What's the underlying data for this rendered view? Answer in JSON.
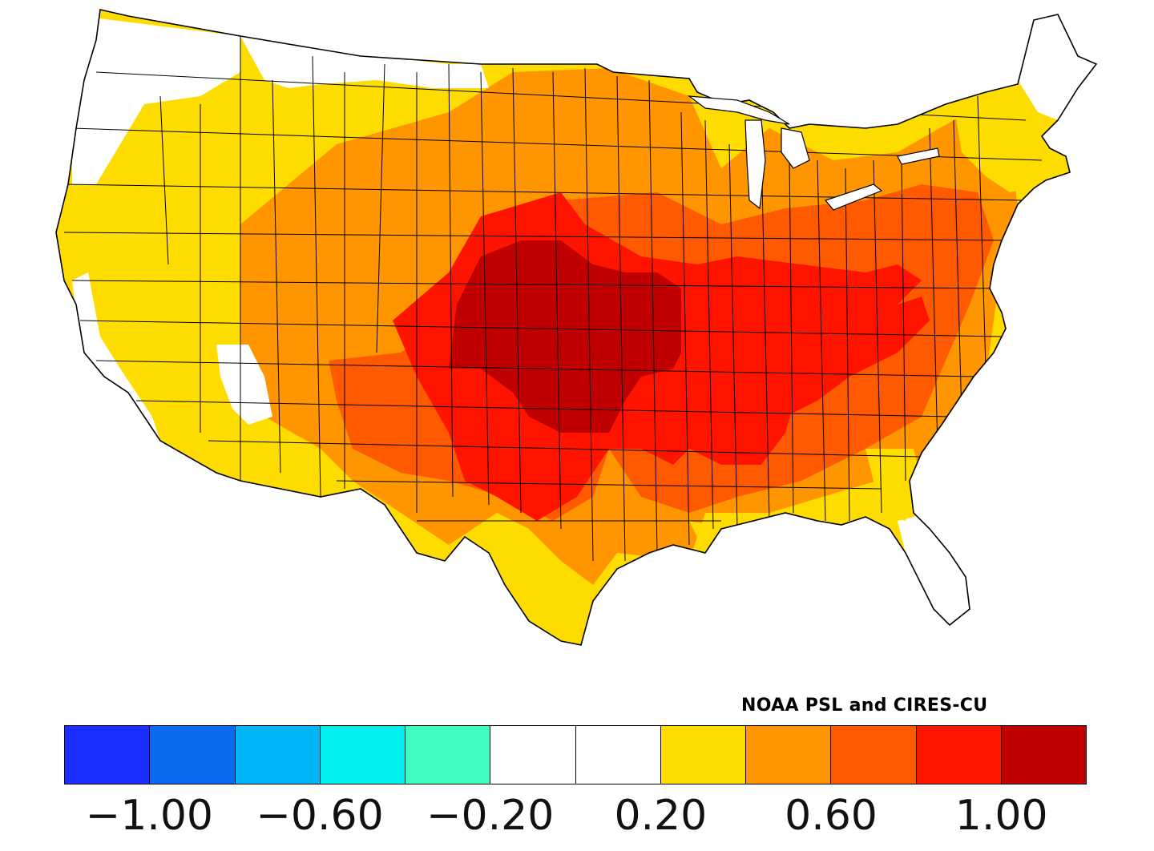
{
  "credit": "NOAA PSL and CIRES-CU",
  "colorbar": {
    "colors": [
      "#1a2eff",
      "#0a6af0",
      "#00b4f5",
      "#00f0f0",
      "#40fcc0",
      "#ffffff",
      "#ffffff",
      "#ffdc00",
      "#ff9600",
      "#ff5a00",
      "#ff1400",
      "#c00000"
    ],
    "tick_labels": [
      "−1.00",
      "−0.60",
      "−0.20",
      "0.20",
      "0.60",
      "1.00"
    ]
  },
  "map": {
    "outline_color": "#000000",
    "levels": {
      "white": "#ffffff",
      "yellow": "#ffdc00",
      "orange": "#ff9600",
      "dark_orange": "#ff5a00",
      "red": "#ff1400",
      "dark_red": "#c00000"
    }
  }
}
